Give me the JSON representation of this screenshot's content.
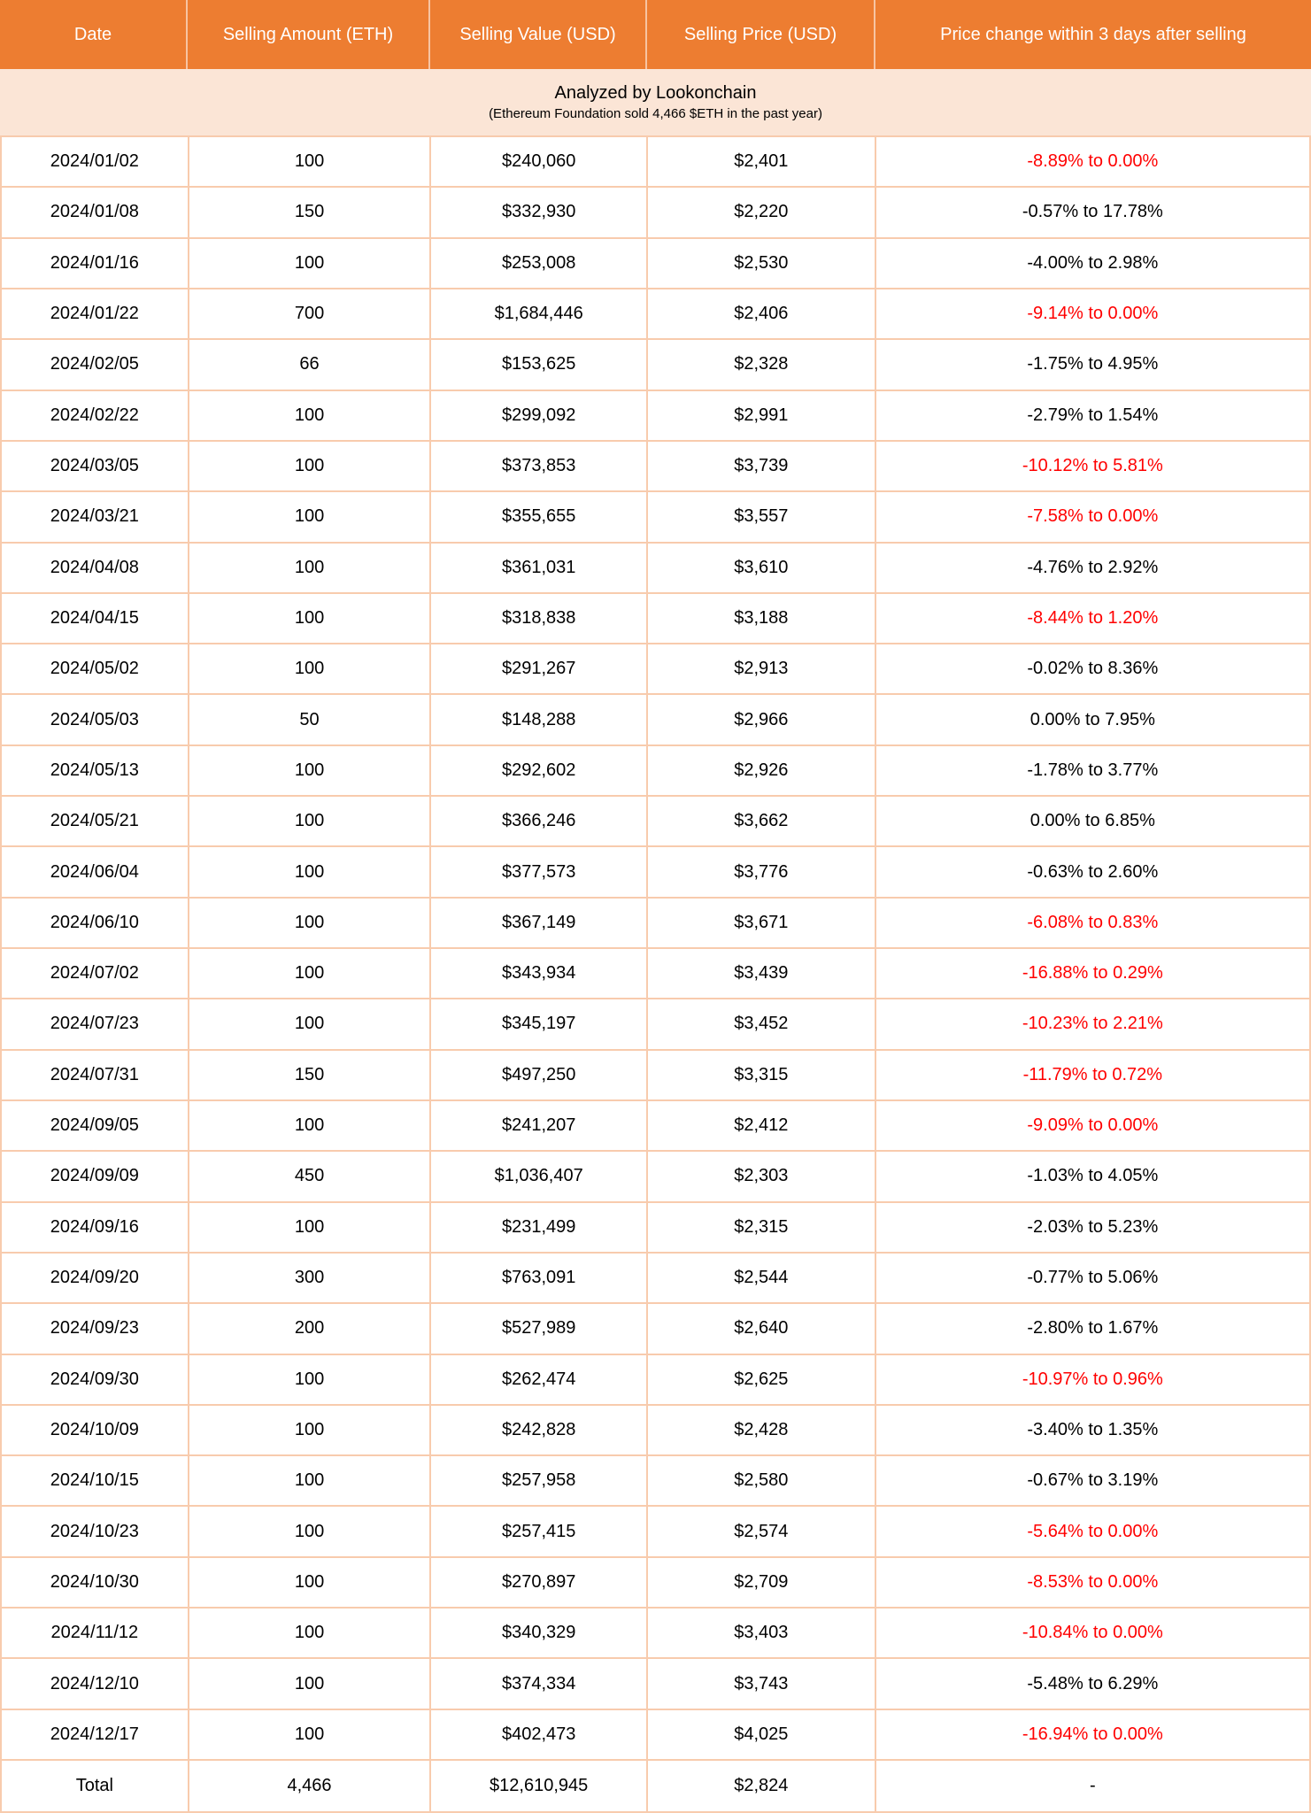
{
  "colors": {
    "header_bg": "#ED7D31",
    "header_text": "#FFFFFF",
    "subtitle_bg": "#FBE5D6",
    "grid_border": "#F8CBAD",
    "negative_change_text": "#FF0000",
    "body_text": "#000000"
  },
  "chart_data": {
    "type": "table",
    "title": "Analyzed by Lookonchain",
    "note": "(Ethereum Foundation sold 4,466 $ETH in the past year)",
    "columns": [
      "Date",
      "Selling Amount (ETH)",
      "Selling Value (USD)",
      "Selling Price (USD)",
      "Price change within 3 days after selling"
    ],
    "rows": [
      {
        "date": "2024/01/02",
        "amount_eth": "100",
        "value_usd": "$240,060",
        "price_usd": "$2,401",
        "change": "-8.89% to 0.00%",
        "negative": true
      },
      {
        "date": "2024/01/08",
        "amount_eth": "150",
        "value_usd": "$332,930",
        "price_usd": "$2,220",
        "change": "-0.57% to 17.78%",
        "negative": false
      },
      {
        "date": "2024/01/16",
        "amount_eth": "100",
        "value_usd": "$253,008",
        "price_usd": "$2,530",
        "change": "-4.00% to 2.98%",
        "negative": false
      },
      {
        "date": "2024/01/22",
        "amount_eth": "700",
        "value_usd": "$1,684,446",
        "price_usd": "$2,406",
        "change": "-9.14% to 0.00%",
        "negative": true
      },
      {
        "date": "2024/02/05",
        "amount_eth": "66",
        "value_usd": "$153,625",
        "price_usd": "$2,328",
        "change": "-1.75% to 4.95%",
        "negative": false
      },
      {
        "date": "2024/02/22",
        "amount_eth": "100",
        "value_usd": "$299,092",
        "price_usd": "$2,991",
        "change": "-2.79% to 1.54%",
        "negative": false
      },
      {
        "date": "2024/03/05",
        "amount_eth": "100",
        "value_usd": "$373,853",
        "price_usd": "$3,739",
        "change": "-10.12% to 5.81%",
        "negative": true
      },
      {
        "date": "2024/03/21",
        "amount_eth": "100",
        "value_usd": "$355,655",
        "price_usd": "$3,557",
        "change": "-7.58% to 0.00%",
        "negative": true
      },
      {
        "date": "2024/04/08",
        "amount_eth": "100",
        "value_usd": "$361,031",
        "price_usd": "$3,610",
        "change": "-4.76% to 2.92%",
        "negative": false
      },
      {
        "date": "2024/04/15",
        "amount_eth": "100",
        "value_usd": "$318,838",
        "price_usd": "$3,188",
        "change": "-8.44% to 1.20%",
        "negative": true
      },
      {
        "date": "2024/05/02",
        "amount_eth": "100",
        "value_usd": "$291,267",
        "price_usd": "$2,913",
        "change": "-0.02% to 8.36%",
        "negative": false
      },
      {
        "date": "2024/05/03",
        "amount_eth": "50",
        "value_usd": "$148,288",
        "price_usd": "$2,966",
        "change": "0.00% to 7.95%",
        "negative": false
      },
      {
        "date": "2024/05/13",
        "amount_eth": "100",
        "value_usd": "$292,602",
        "price_usd": "$2,926",
        "change": "-1.78% to 3.77%",
        "negative": false
      },
      {
        "date": "2024/05/21",
        "amount_eth": "100",
        "value_usd": "$366,246",
        "price_usd": "$3,662",
        "change": "0.00% to 6.85%",
        "negative": false
      },
      {
        "date": "2024/06/04",
        "amount_eth": "100",
        "value_usd": "$377,573",
        "price_usd": "$3,776",
        "change": "-0.63% to 2.60%",
        "negative": false
      },
      {
        "date": "2024/06/10",
        "amount_eth": "100",
        "value_usd": "$367,149",
        "price_usd": "$3,671",
        "change": "-6.08% to 0.83%",
        "negative": true
      },
      {
        "date": "2024/07/02",
        "amount_eth": "100",
        "value_usd": "$343,934",
        "price_usd": "$3,439",
        "change": "-16.88% to 0.29%",
        "negative": true
      },
      {
        "date": "2024/07/23",
        "amount_eth": "100",
        "value_usd": "$345,197",
        "price_usd": "$3,452",
        "change": "-10.23% to 2.21%",
        "negative": true
      },
      {
        "date": "2024/07/31",
        "amount_eth": "150",
        "value_usd": "$497,250",
        "price_usd": "$3,315",
        "change": "-11.79% to 0.72%",
        "negative": true
      },
      {
        "date": "2024/09/05",
        "amount_eth": "100",
        "value_usd": "$241,207",
        "price_usd": "$2,412",
        "change": "-9.09% to 0.00%",
        "negative": true
      },
      {
        "date": "2024/09/09",
        "amount_eth": "450",
        "value_usd": "$1,036,407",
        "price_usd": "$2,303",
        "change": "-1.03% to 4.05%",
        "negative": false
      },
      {
        "date": "2024/09/16",
        "amount_eth": "100",
        "value_usd": "$231,499",
        "price_usd": "$2,315",
        "change": "-2.03% to 5.23%",
        "negative": false
      },
      {
        "date": "2024/09/20",
        "amount_eth": "300",
        "value_usd": "$763,091",
        "price_usd": "$2,544",
        "change": "-0.77% to 5.06%",
        "negative": false
      },
      {
        "date": "2024/09/23",
        "amount_eth": "200",
        "value_usd": "$527,989",
        "price_usd": "$2,640",
        "change": "-2.80% to 1.67%",
        "negative": false
      },
      {
        "date": "2024/09/30",
        "amount_eth": "100",
        "value_usd": "$262,474",
        "price_usd": "$2,625",
        "change": "-10.97% to 0.96%",
        "negative": true
      },
      {
        "date": "2024/10/09",
        "amount_eth": "100",
        "value_usd": "$242,828",
        "price_usd": "$2,428",
        "change": "-3.40% to 1.35%",
        "negative": false
      },
      {
        "date": "2024/10/15",
        "amount_eth": "100",
        "value_usd": "$257,958",
        "price_usd": "$2,580",
        "change": "-0.67% to 3.19%",
        "negative": false
      },
      {
        "date": "2024/10/23",
        "amount_eth": "100",
        "value_usd": "$257,415",
        "price_usd": "$2,574",
        "change": "-5.64% to 0.00%",
        "negative": true
      },
      {
        "date": "2024/10/30",
        "amount_eth": "100",
        "value_usd": "$270,897",
        "price_usd": "$2,709",
        "change": "-8.53% to 0.00%",
        "negative": true
      },
      {
        "date": "2024/11/12",
        "amount_eth": "100",
        "value_usd": "$340,329",
        "price_usd": "$3,403",
        "change": "-10.84% to 0.00%",
        "negative": true
      },
      {
        "date": "2024/12/10",
        "amount_eth": "100",
        "value_usd": "$374,334",
        "price_usd": "$3,743",
        "change": "-5.48% to 6.29%",
        "negative": false
      },
      {
        "date": "2024/12/17",
        "amount_eth": "100",
        "value_usd": "$402,473",
        "price_usd": "$4,025",
        "change": "-16.94% to 0.00%",
        "negative": true
      }
    ],
    "total": {
      "date": "Total",
      "amount_eth": "4,466",
      "value_usd": "$12,610,945",
      "price_usd": "$2,824",
      "change": "-"
    }
  }
}
